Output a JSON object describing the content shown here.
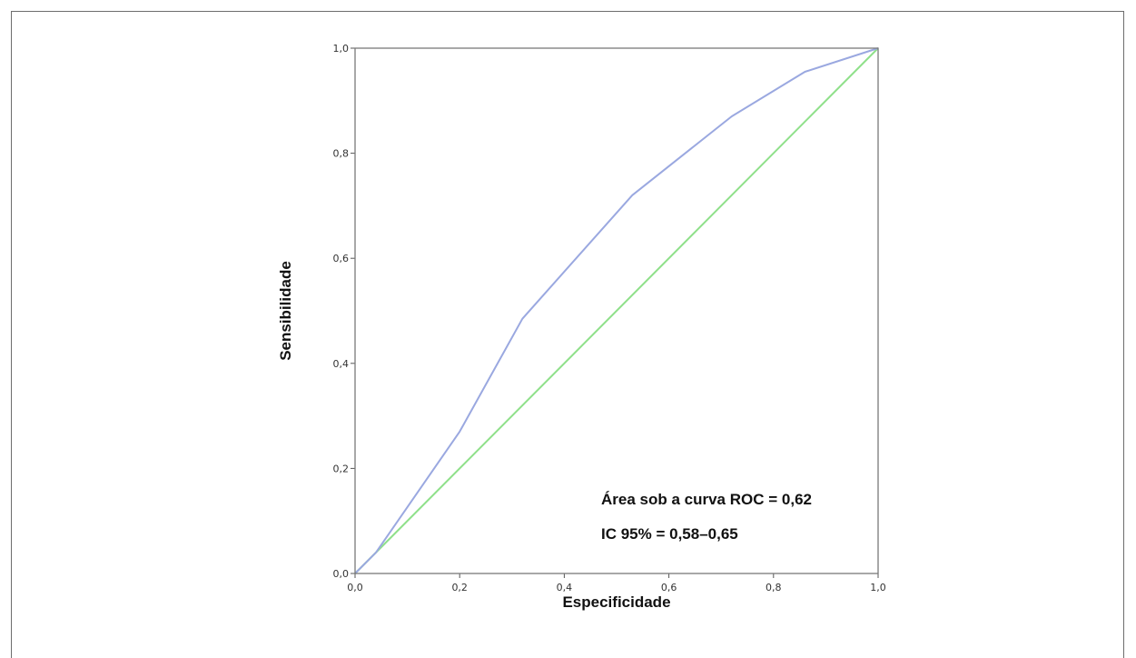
{
  "chart_data": {
    "type": "line",
    "xlabel": "Especificidade",
    "ylabel": "Sensibilidade",
    "xlim": [
      0,
      1
    ],
    "ylim": [
      0,
      1
    ],
    "x_ticks": [
      "0,0",
      "0,2",
      "0,4",
      "0,6",
      "0,8",
      "1,0"
    ],
    "y_ticks": [
      "0,0",
      "0,2",
      "0,4",
      "0,6",
      "0,8",
      "1,0"
    ],
    "grid": false,
    "legend": "none",
    "series": [
      {
        "color": "#9aa8e0",
        "x": [
          0.0,
          0.04,
          0.2,
          0.32,
          0.53,
          0.72,
          0.86,
          1.0
        ],
        "y": [
          0.0,
          0.04,
          0.27,
          0.485,
          0.72,
          0.87,
          0.955,
          1.0
        ]
      },
      {
        "color": "#8fe08a",
        "x": [
          0.0,
          1.0
        ],
        "y": [
          0.0,
          1.0
        ]
      }
    ],
    "annotations": [
      "Área sob a curva ROC = 0,62",
      "IC 95% = 0,58–0,65"
    ]
  }
}
